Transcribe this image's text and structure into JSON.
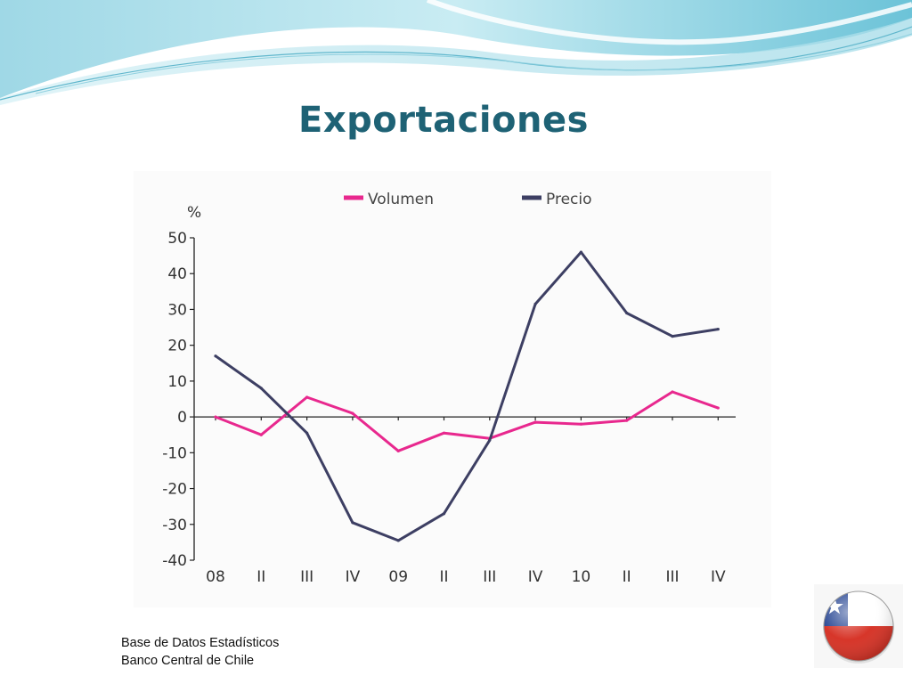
{
  "slide": {
    "title": "Exportaciones",
    "source_line1": "Base de Datos Estadísticos",
    "source_line2": "Banco Central de Chile",
    "flag_icon": "chile-flag-icon"
  },
  "colors": {
    "title": "#1e6275",
    "volumen": "#e8288e",
    "precio": "#3d3f63",
    "banner_light": "#bfe6ef",
    "banner_mid": "#7fcbdc"
  },
  "chart_data": {
    "type": "line",
    "title": "",
    "ylabel": "%",
    "xlabel": "",
    "ylim": [
      -40,
      50
    ],
    "yticks": [
      50,
      40,
      30,
      20,
      10,
      0,
      -10,
      -20,
      -30,
      -40
    ],
    "categories": [
      "08",
      "II",
      "III",
      "IV",
      "09",
      "II",
      "III",
      "IV",
      "10",
      "II",
      "III",
      "IV"
    ],
    "legend_position": "top",
    "series": [
      {
        "name": "Volumen",
        "color": "#e8288e",
        "values": [
          0,
          -5,
          5.5,
          1,
          -9.5,
          -4.5,
          -6,
          -1.5,
          -2,
          -1,
          7,
          2.5
        ]
      },
      {
        "name": "Precio",
        "color": "#3d3f63",
        "values": [
          17,
          8,
          -4.5,
          -29.5,
          -34.5,
          -27,
          -6.5,
          31.5,
          46,
          29,
          22.5,
          24.5
        ]
      }
    ]
  }
}
